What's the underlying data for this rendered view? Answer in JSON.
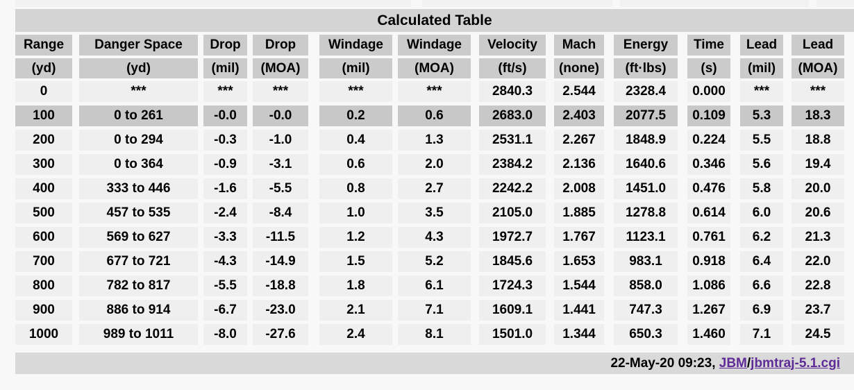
{
  "title": "Calculated Table",
  "table": {
    "columns": [
      {
        "name": "Range",
        "unit": "(yd)"
      },
      {
        "name": "Danger Space",
        "unit": "(yd)"
      },
      {
        "name": "Drop",
        "unit": "(mil)"
      },
      {
        "name": "Drop",
        "unit": "(MOA)"
      },
      {
        "name": "Windage",
        "unit": "(mil)"
      },
      {
        "name": "Windage",
        "unit": "(MOA)"
      },
      {
        "name": "Velocity",
        "unit": "(ft/s)"
      },
      {
        "name": "Mach",
        "unit": "(none)"
      },
      {
        "name": "Energy",
        "unit": "(ft·lbs)"
      },
      {
        "name": "Time",
        "unit": "(s)"
      },
      {
        "name": "Lead",
        "unit": "(mil)"
      },
      {
        "name": "Lead",
        "unit": "(MOA)"
      }
    ],
    "rows": [
      [
        "0",
        "***",
        "***",
        "***",
        "***",
        "***",
        "2840.3",
        "2.544",
        "2328.4",
        "0.000",
        "***",
        "***"
      ],
      [
        "100",
        "0 to 261",
        "-0.0",
        "-0.0",
        "0.2",
        "0.6",
        "2683.0",
        "2.403",
        "2077.5",
        "0.109",
        "5.3",
        "18.3"
      ],
      [
        "200",
        "0 to 294",
        "-0.3",
        "-1.0",
        "0.4",
        "1.3",
        "2531.1",
        "2.267",
        "1848.9",
        "0.224",
        "5.5",
        "18.8"
      ],
      [
        "300",
        "0 to 364",
        "-0.9",
        "-3.1",
        "0.6",
        "2.0",
        "2384.2",
        "2.136",
        "1640.6",
        "0.346",
        "5.6",
        "19.4"
      ],
      [
        "400",
        "333 to 446",
        "-1.6",
        "-5.5",
        "0.8",
        "2.7",
        "2242.2",
        "2.008",
        "1451.0",
        "0.476",
        "5.8",
        "20.0"
      ],
      [
        "500",
        "457 to 535",
        "-2.4",
        "-8.4",
        "1.0",
        "3.5",
        "2105.0",
        "1.885",
        "1278.8",
        "0.614",
        "6.0",
        "20.6"
      ],
      [
        "600",
        "569 to 627",
        "-3.3",
        "-11.5",
        "1.2",
        "4.3",
        "1972.7",
        "1.767",
        "1123.1",
        "0.761",
        "6.2",
        "21.3"
      ],
      [
        "700",
        "677 to 721",
        "-4.3",
        "-14.9",
        "1.5",
        "5.2",
        "1845.6",
        "1.653",
        "983.1",
        "0.918",
        "6.4",
        "22.0"
      ],
      [
        "800",
        "782 to 817",
        "-5.5",
        "-18.8",
        "1.8",
        "6.1",
        "1724.3",
        "1.544",
        "858.0",
        "1.086",
        "6.6",
        "22.8"
      ],
      [
        "900",
        "886 to 914",
        "-6.7",
        "-23.0",
        "2.1",
        "7.1",
        "1609.1",
        "1.441",
        "747.3",
        "1.267",
        "6.9",
        "23.7"
      ],
      [
        "1000",
        "989 to 1011",
        "-8.0",
        "-27.6",
        "2.4",
        "8.1",
        "1501.0",
        "1.344",
        "650.3",
        "1.460",
        "7.1",
        "24.5"
      ]
    ],
    "highlighted_row_index": 1
  },
  "footer": {
    "timestamp": "22-May-20 09:23, ",
    "link1": "JBM",
    "separator": "/",
    "link2": "jbmtraj-5.1.cgi",
    "link_color": "#5e2b97"
  }
}
